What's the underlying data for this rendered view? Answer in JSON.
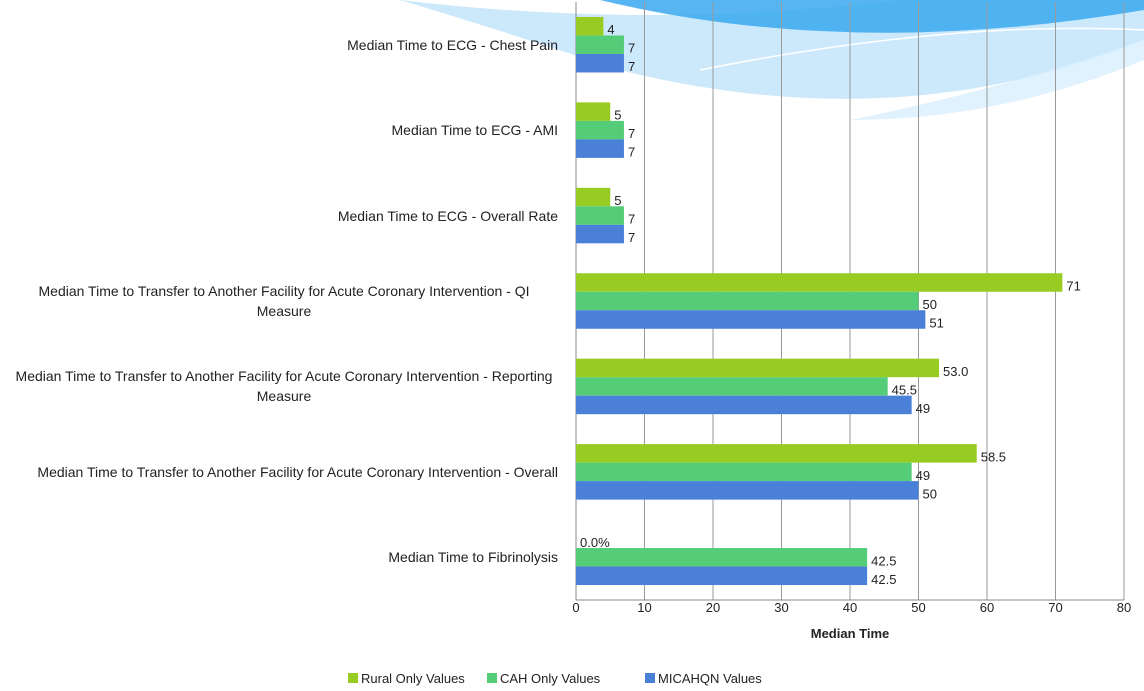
{
  "chart_data": {
    "type": "bar",
    "orientation": "horizontal",
    "categories": [
      "Median Time to ECG - Chest Pain",
      "Median Time to ECG - AMI",
      "Median Time to ECG - Overall Rate",
      "Median Time to Transfer to Another Facility for Acute Coronary Intervention - QI Measure",
      "Median Time to Transfer to Another Facility for Acute Coronary Intervention - Reporting Measure",
      "Median Time to Transfer to Another Facility for Acute Coronary Intervention - Overall",
      "Median Time to Fibrinolysis"
    ],
    "series": [
      {
        "name": "Rural Only Values",
        "color": "#99cc22",
        "values": [
          4,
          5,
          5,
          71,
          53,
          58.5,
          0
        ],
        "value_labels": [
          "4",
          "5",
          "5",
          "71",
          "53.0",
          "58.5",
          "0.0%"
        ]
      },
      {
        "name": "CAH Only Values",
        "color": "#55cc77",
        "values": [
          7,
          7,
          7,
          50,
          45.5,
          49,
          42.5
        ]
      },
      {
        "name": "MICAHQN Values",
        "color": "#4a80d8",
        "values": [
          7,
          7,
          7,
          51,
          49,
          50,
          42.5
        ]
      }
    ],
    "xlabel": "Median Time",
    "xlim": [
      0,
      80
    ],
    "xticks": [
      0,
      10,
      20,
      30,
      40,
      50,
      60,
      70,
      80
    ],
    "grid": true,
    "legend": "bottom"
  }
}
